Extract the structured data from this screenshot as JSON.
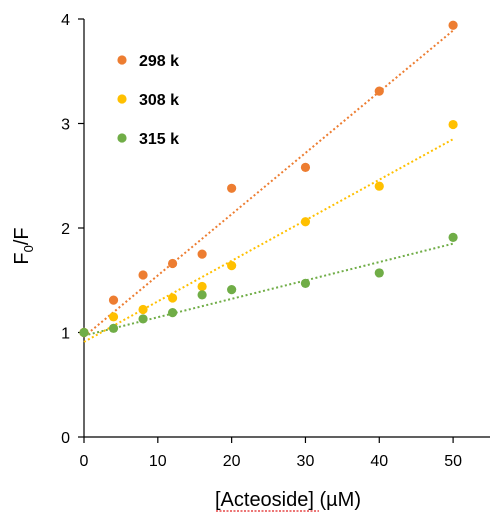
{
  "chart_data": {
    "type": "scatter",
    "title": "",
    "xlabel": "[Acteoside] (µM)",
    "ylabel": {
      "main": "F",
      "sub": "0",
      "rest": "/F"
    },
    "xlim": [
      0,
      55
    ],
    "ylim": [
      0,
      4
    ],
    "x_ticks": [
      0,
      10,
      20,
      30,
      40,
      50
    ],
    "y_ticks": [
      0,
      1,
      2,
      3,
      4
    ],
    "grid": false,
    "legend_position": "top-left",
    "series": [
      {
        "name": "298 k",
        "color": "#ed7d31",
        "x": [
          0,
          4,
          8,
          12,
          16,
          20,
          30,
          40,
          50
        ],
        "y": [
          1.0,
          1.31,
          1.55,
          1.66,
          1.75,
          2.38,
          2.58,
          3.31,
          3.94
        ],
        "trendline": {
          "style": "dotted",
          "from": [
            0,
            0.96
          ],
          "to": [
            50,
            3.89
          ]
        }
      },
      {
        "name": "308 k",
        "color": "#ffc000",
        "x": [
          0,
          4,
          8,
          12,
          16,
          20,
          30,
          40,
          50
        ],
        "y": [
          1.0,
          1.15,
          1.22,
          1.33,
          1.44,
          1.64,
          2.06,
          2.4,
          2.99
        ],
        "trendline": {
          "style": "dotted",
          "from": [
            0,
            0.91
          ],
          "to": [
            50,
            2.85
          ]
        }
      },
      {
        "name": "315 k",
        "color": "#70ad47",
        "x": [
          0,
          4,
          8,
          12,
          16,
          20,
          30,
          40,
          50
        ],
        "y": [
          1.0,
          1.04,
          1.13,
          1.19,
          1.36,
          1.41,
          1.47,
          1.57,
          1.91
        ],
        "trendline": {
          "style": "dotted",
          "from": [
            0,
            0.97
          ],
          "to": [
            50,
            1.85
          ]
        }
      }
    ]
  }
}
